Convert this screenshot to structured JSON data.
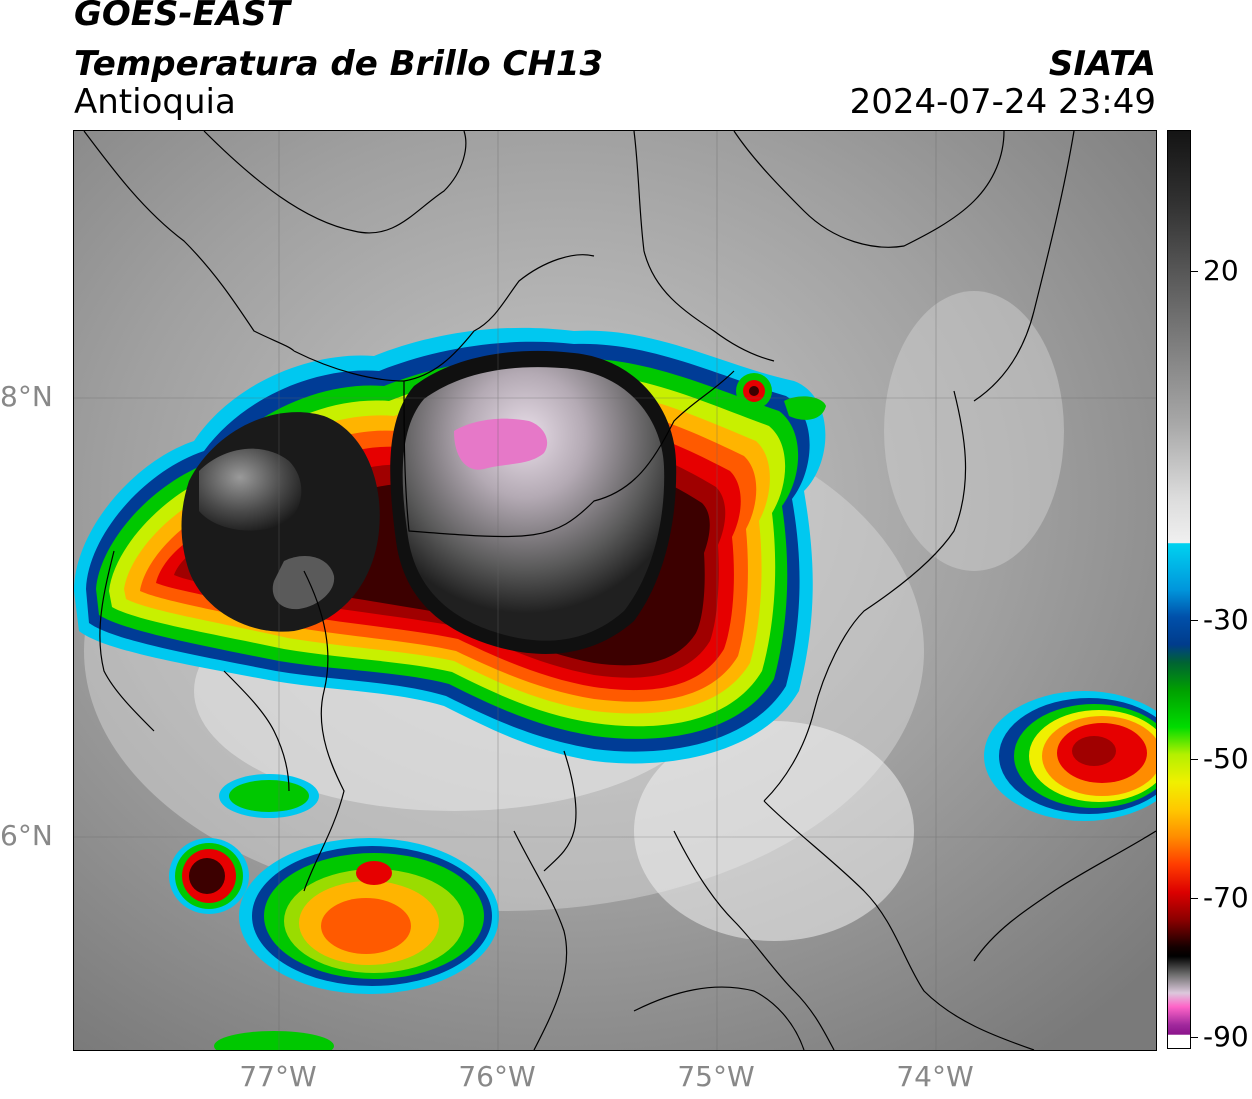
{
  "header": {
    "satellite": "GOES-EAST",
    "product": "Temperatura de Brillo CH13",
    "region": "Antioquia",
    "organization": "SIATA",
    "timestamp": "2024-07-24 23:49"
  },
  "axes": {
    "latitudes": [
      "8°N",
      "6°N"
    ],
    "longitudes": [
      "77°W",
      "76°W",
      "75°W",
      "74°W"
    ]
  },
  "colorbar": {
    "ticks": [
      "20",
      "-30",
      "-50",
      "-70",
      "-90"
    ],
    "colors": {
      "warm_dark": "#1a1a1a",
      "cyan": "#00c8f0",
      "blue": "#003c96",
      "green": "#00c800",
      "yellow": "#f0f000",
      "orange": "#ff8c00",
      "red": "#e60000",
      "dark_red": "#500000",
      "black": "#000000",
      "pink": "#ff64c8",
      "purple": "#8c148c"
    }
  }
}
